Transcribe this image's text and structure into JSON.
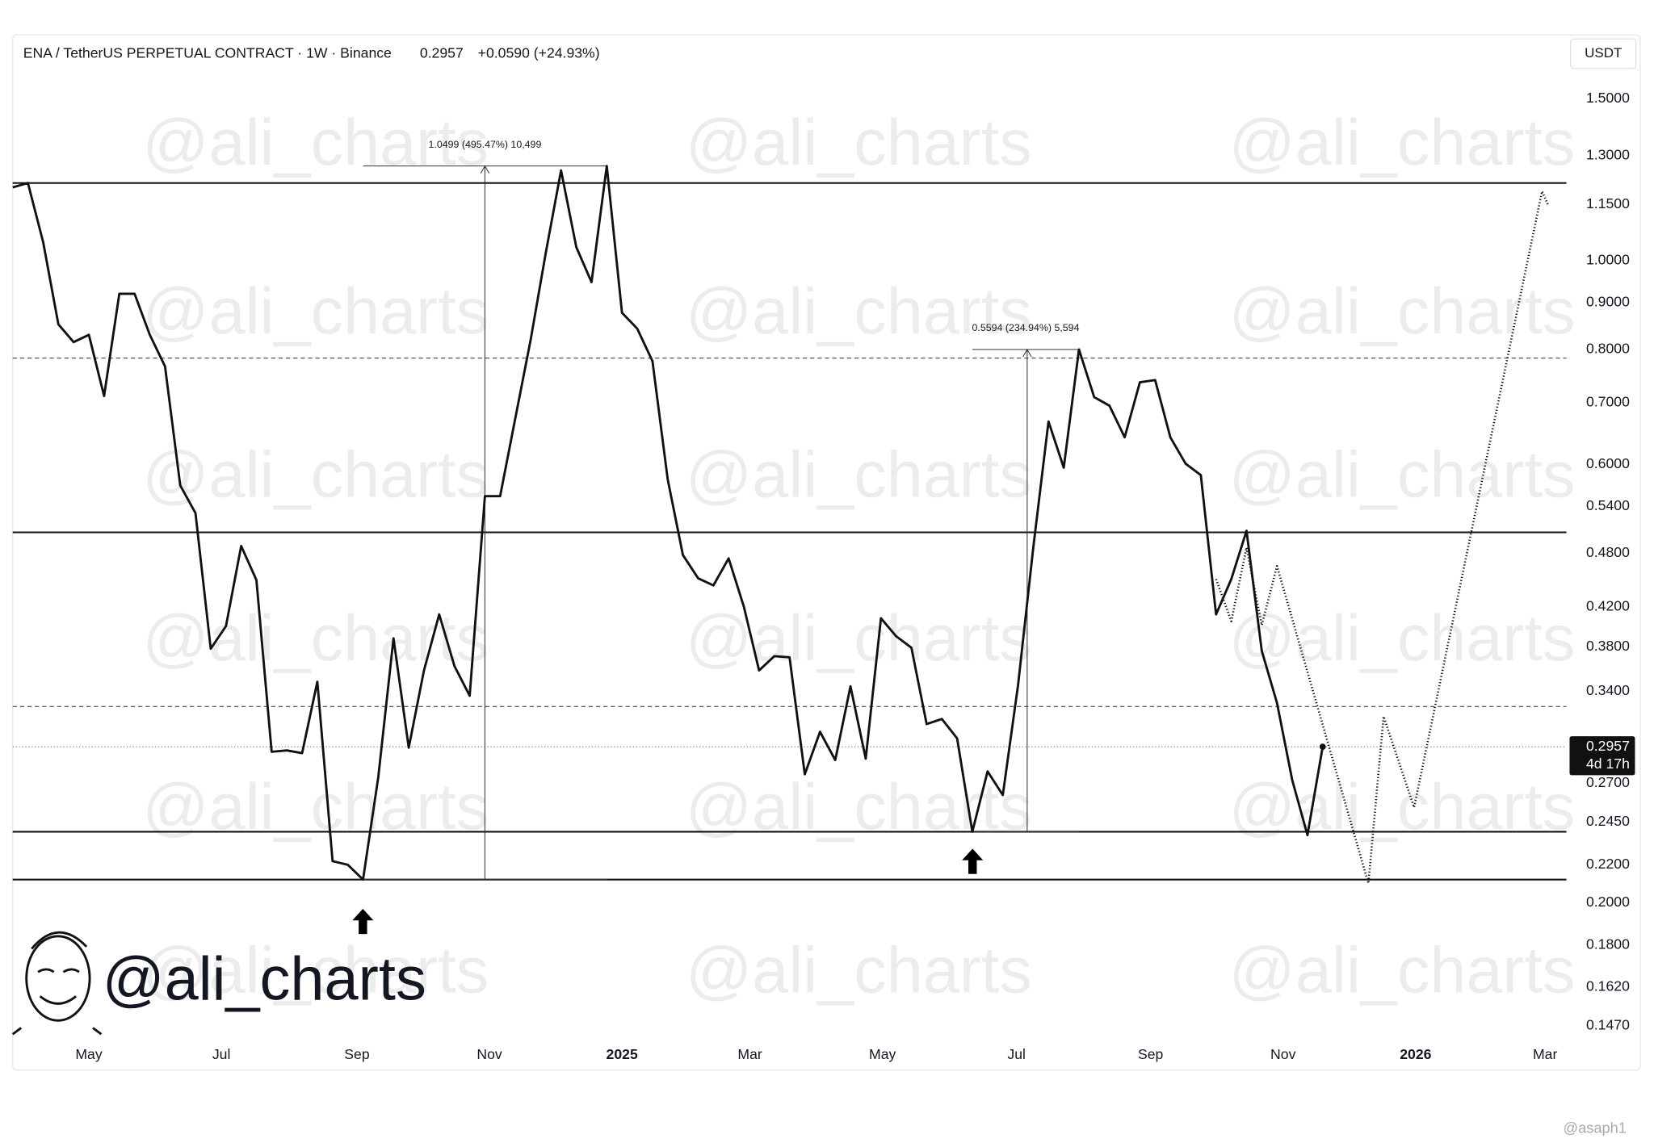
{
  "chart_data": {
    "type": "line",
    "title": "ENA / TetherUS PERPETUAL CONTRACT · 1W · Binance",
    "price": 0.2957,
    "change": "+0.0590 (+24.93%)",
    "currency": "USDT",
    "countdown": "4d 17h",
    "watermark": "@ali_charts",
    "credit": "@asaph1",
    "log_scale": true,
    "grid": false,
    "xlim": [
      -5,
      97
    ],
    "ylim": [
      0.1424,
      1.76
    ],
    "xticks": [
      {
        "value": 0,
        "label": "May"
      },
      {
        "value": 8.7,
        "label": "Jul"
      },
      {
        "value": 17.6,
        "label": "Sep"
      },
      {
        "value": 26.3,
        "label": "Nov"
      },
      {
        "value": 35,
        "label": "2025"
      },
      {
        "value": 43.4,
        "label": "Mar"
      },
      {
        "value": 52.1,
        "label": "May"
      },
      {
        "value": 60.9,
        "label": "Jul"
      },
      {
        "value": 69.7,
        "label": "Sep"
      },
      {
        "value": 78.4,
        "label": "Nov"
      },
      {
        "value": 87.1,
        "label": "2026"
      },
      {
        "value": 95.6,
        "label": "Mar"
      }
    ],
    "yticks": [
      {
        "value": 1.5,
        "label": "1.5000"
      },
      {
        "value": 1.3,
        "label": "1.3000"
      },
      {
        "value": 1.15,
        "label": "1.1500"
      },
      {
        "value": 1.0,
        "label": "1.0000"
      },
      {
        "value": 0.9,
        "label": "0.9000"
      },
      {
        "value": 0.8,
        "label": "0.8000"
      },
      {
        "value": 0.7,
        "label": "0.7000"
      },
      {
        "value": 0.6,
        "label": "0.6000"
      },
      {
        "value": 0.54,
        "label": "0.5400"
      },
      {
        "value": 0.48,
        "label": "0.4800"
      },
      {
        "value": 0.42,
        "label": "0.4200"
      },
      {
        "value": 0.38,
        "label": "0.3800"
      },
      {
        "value": 0.34,
        "label": "0.3400"
      },
      {
        "value": 0.27,
        "label": "0.2700"
      },
      {
        "value": 0.245,
        "label": "0.2450"
      },
      {
        "value": 0.22,
        "label": "0.2200"
      },
      {
        "value": 0.2,
        "label": "0.2000"
      },
      {
        "value": 0.18,
        "label": "0.1800"
      },
      {
        "value": 0.162,
        "label": "0.1620"
      },
      {
        "value": 0.147,
        "label": "0.1470"
      }
    ],
    "series": [
      {
        "color": "#111111",
        "style": "solid",
        "x": [
          -5,
          -4,
          -3,
          -2,
          -1,
          0,
          1,
          2,
          3,
          4,
          5,
          6,
          7,
          8,
          9,
          10,
          11,
          12,
          13,
          14,
          15,
          16,
          17,
          18,
          19,
          20,
          21,
          22,
          23,
          24,
          25,
          26,
          27,
          28,
          29,
          30,
          31,
          32,
          33,
          34,
          35,
          36,
          37,
          38,
          39,
          40,
          41,
          42,
          43,
          44,
          45,
          46,
          47,
          48,
          49,
          50,
          51,
          52,
          53,
          54,
          55,
          56,
          57,
          58,
          59,
          60,
          61,
          62,
          63,
          64,
          65,
          66,
          67,
          68,
          69,
          70,
          71,
          72,
          73,
          74,
          75,
          76,
          77,
          78,
          79,
          80,
          81
        ],
        "values": [
          1.201,
          1.214,
          1.047,
          0.852,
          0.815,
          0.83,
          0.712,
          0.92,
          0.92,
          0.83,
          0.767,
          0.569,
          0.531,
          0.378,
          0.4,
          0.489,
          0.449,
          0.292,
          0.293,
          0.291,
          0.348,
          0.222,
          0.22,
          0.212,
          0.274,
          0.388,
          0.295,
          0.358,
          0.412,
          0.362,
          0.336,
          0.554,
          0.554,
          0.674,
          0.819,
          1.02,
          1.253,
          1.034,
          0.947,
          1.267,
          0.877,
          0.843,
          0.777,
          0.578,
          0.478,
          0.451,
          0.443,
          0.474,
          0.42,
          0.358,
          0.371,
          0.37,
          0.276,
          0.307,
          0.286,
          0.344,
          0.287,
          0.408,
          0.39,
          0.379,
          0.313,
          0.317,
          0.302,
          0.239,
          0.278,
          0.262,
          0.345,
          0.487,
          0.668,
          0.595,
          0.8,
          0.71,
          0.695,
          0.642,
          0.737,
          0.741,
          0.642,
          0.601,
          0.584,
          0.412,
          0.45,
          0.508,
          0.376,
          0.33,
          0.272,
          0.237,
          0.2957
        ]
      },
      {
        "color": "#111111",
        "style": "dotted",
        "x": [
          74,
          75,
          76,
          77,
          78,
          84,
          85,
          87,
          95.4,
          95.8
        ],
        "values": [
          0.45,
          0.405,
          0.487,
          0.401,
          0.465,
          0.21,
          0.319,
          0.254,
          1.189,
          1.149
        ]
      }
    ],
    "levels": [
      {
        "value": 1.214,
        "style": "solid"
      },
      {
        "value": 0.783,
        "style": "dashed"
      },
      {
        "value": 0.506,
        "style": "solid"
      },
      {
        "value": 0.327,
        "style": "dashed"
      },
      {
        "value": 0.239,
        "style": "solid"
      },
      {
        "value": 0.212,
        "style": "solid"
      }
    ],
    "measurements": [
      {
        "label": "1.0499 (495.47%) 10,499",
        "x": 26,
        "x_start": 18,
        "x_end": 34,
        "low": 0.212,
        "high": 1.267
      },
      {
        "label": "0.5594 (234.94%) 5,594",
        "x": 61.6,
        "x_start": 58,
        "x_end": 65,
        "low": 0.239,
        "high": 0.8
      }
    ]
  }
}
